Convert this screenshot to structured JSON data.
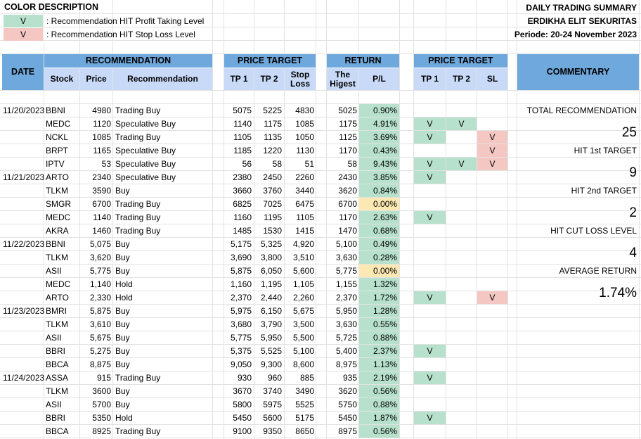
{
  "legend": {
    "title": "COLOR DESCRIPTION",
    "items": [
      {
        "symbol": "V",
        "text": ": Recommendation HIT Profit Taking Level",
        "color": "#b7e1cd"
      },
      {
        "symbol": "V",
        "text": ": Recommendation HIT Stop Loss Level",
        "color": "#f4c7c3"
      }
    ]
  },
  "report": {
    "title": "DAILY TRADING SUMMARY",
    "company": "ERDIKHA ELIT SEKURITAS",
    "period": "Periode:  20-24 November 2023"
  },
  "headers": {
    "date": "DATE",
    "recommendation": "RECOMMENDATION",
    "stock": "Stock",
    "price": "Price",
    "recommendation_col": "Recommendation",
    "price_target": "PRICE TARGET",
    "tp1": "TP 1",
    "tp2": "TP 2",
    "stop_loss": "Stop Loss",
    "return": "RETURN",
    "highest": "The Higest",
    "pl": "P/L",
    "hit_price_target": "PRICE TARGET",
    "hit_tp1": "TP 1",
    "hit_tp2": "TP 2",
    "hit_sl": "SL",
    "commentary": "COMMENTARY"
  },
  "colors": {
    "header_dark": "#6fa8dc",
    "header_light": "#c9daf8",
    "pl_positive": "#b7e1cd",
    "pl_zero": "#fce8b2",
    "hit_profit": "#b7e1cd",
    "hit_stop": "#f4c7c3"
  },
  "rows": [
    {
      "date": "11/20/2023",
      "stock": "BBNI",
      "price": "4980",
      "rec": "Trading Buy",
      "tp1": "5075",
      "tp2": "5225",
      "sl": "4830",
      "high": "5025",
      "pl": "0.90%",
      "pl_color": "green",
      "h1": "",
      "h2": "",
      "hs": ""
    },
    {
      "date": "",
      "stock": "MEDC",
      "price": "1120",
      "rec": "Speculative Buy",
      "tp1": "1140",
      "tp2": "1175",
      "sl": "1085",
      "high": "1175",
      "pl": "4.91%",
      "pl_color": "green",
      "h1": "V",
      "h2": "V",
      "hs": ""
    },
    {
      "date": "",
      "stock": "NCKL",
      "price": "1085",
      "rec": "Trading Buy",
      "tp1": "1105",
      "tp2": "1135",
      "sl": "1050",
      "high": "1125",
      "pl": "3.69%",
      "pl_color": "green",
      "h1": "V",
      "h2": "",
      "hs": "V"
    },
    {
      "date": "",
      "stock": "BRPT",
      "price": "1165",
      "rec": "Speculative Buy",
      "tp1": "1185",
      "tp2": "1220",
      "sl": "1130",
      "high": "1170",
      "pl": "0.43%",
      "pl_color": "green",
      "h1": "",
      "h2": "",
      "hs": "V"
    },
    {
      "date": "",
      "stock": "IPTV",
      "price": "53",
      "rec": "Speculative Buy",
      "tp1": "56",
      "tp2": "58",
      "sl": "51",
      "high": "58",
      "pl": "9.43%",
      "pl_color": "green",
      "h1": "V",
      "h2": "V",
      "hs": "V"
    },
    {
      "date": "11/21/2023",
      "stock": "ARTO",
      "price": "2340",
      "rec": "Speculative Buy",
      "tp1": "2380",
      "tp2": "2450",
      "sl": "2260",
      "high": "2430",
      "pl": "3.85%",
      "pl_color": "green",
      "h1": "V",
      "h2": "",
      "hs": ""
    },
    {
      "date": "",
      "stock": "TLKM",
      "price": "3590",
      "rec": "Buy",
      "tp1": "3660",
      "tp2": "3760",
      "sl": "3440",
      "high": "3620",
      "pl": "0.84%",
      "pl_color": "green",
      "h1": "",
      "h2": "",
      "hs": ""
    },
    {
      "date": "",
      "stock": "SMGR",
      "price": "6700",
      "rec": "Trading Buy",
      "tp1": "6825",
      "tp2": "7025",
      "sl": "6475",
      "high": "6700",
      "pl": "0.00%",
      "pl_color": "yellow",
      "h1": "",
      "h2": "",
      "hs": ""
    },
    {
      "date": "",
      "stock": "MEDC",
      "price": "1140",
      "rec": "Trading Buy",
      "tp1": "1160",
      "tp2": "1195",
      "sl": "1105",
      "high": "1170",
      "pl": "2.63%",
      "pl_color": "green",
      "h1": "V",
      "h2": "",
      "hs": ""
    },
    {
      "date": "",
      "stock": "AKRA",
      "price": "1460",
      "rec": "Trading Buy",
      "tp1": "1485",
      "tp2": "1530",
      "sl": "1415",
      "high": "1470",
      "pl": "0.68%",
      "pl_color": "green",
      "h1": "",
      "h2": "",
      "hs": ""
    },
    {
      "date": "11/22/2023",
      "stock": "BBNI",
      "price": "5,075",
      "rec": "Buy",
      "tp1": "5,175",
      "tp2": "5,325",
      "sl": "4,920",
      "high": "5,100",
      "pl": "0.49%",
      "pl_color": "green",
      "h1": "",
      "h2": "",
      "hs": ""
    },
    {
      "date": "",
      "stock": "TLKM",
      "price": "3,620",
      "rec": "Buy",
      "tp1": "3,690",
      "tp2": "3,800",
      "sl": "3,510",
      "high": "3,630",
      "pl": "0.28%",
      "pl_color": "green",
      "h1": "",
      "h2": "",
      "hs": ""
    },
    {
      "date": "",
      "stock": "ASII",
      "price": "5,775",
      "rec": "Buy",
      "tp1": "5,875",
      "tp2": "6,050",
      "sl": "5,600",
      "high": "5,775",
      "pl": "0.00%",
      "pl_color": "yellow",
      "h1": "",
      "h2": "",
      "hs": ""
    },
    {
      "date": "",
      "stock": "MEDC",
      "price": "1,140",
      "rec": "Hold",
      "tp1": "1,160",
      "tp2": "1,195",
      "sl": "1,105",
      "high": "1,155",
      "pl": "1.32%",
      "pl_color": "green",
      "h1": "",
      "h2": "",
      "hs": ""
    },
    {
      "date": "",
      "stock": "ARTO",
      "price": "2,330",
      "rec": "Hold",
      "tp1": "2,370",
      "tp2": "2,440",
      "sl": "2,260",
      "high": "2,370",
      "pl": "1.72%",
      "pl_color": "green",
      "h1": "V",
      "h2": "",
      "hs": "V"
    },
    {
      "date": "11/23/2023",
      "stock": "BMRI",
      "price": "5,875",
      "rec": "Buy",
      "tp1": "5,975",
      "tp2": "6,150",
      "sl": "5,675",
      "high": "5,950",
      "pl": "1.28%",
      "pl_color": "green",
      "h1": "",
      "h2": "",
      "hs": ""
    },
    {
      "date": "",
      "stock": "TLKM",
      "price": "3,610",
      "rec": "Buy",
      "tp1": "3,680",
      "tp2": "3,790",
      "sl": "3,500",
      "high": "3,630",
      "pl": "0.55%",
      "pl_color": "green",
      "h1": "",
      "h2": "",
      "hs": ""
    },
    {
      "date": "",
      "stock": "ASII",
      "price": "5,675",
      "rec": "Buy",
      "tp1": "5,775",
      "tp2": "5,950",
      "sl": "5,500",
      "high": "5,725",
      "pl": "0.88%",
      "pl_color": "green",
      "h1": "",
      "h2": "",
      "hs": ""
    },
    {
      "date": "",
      "stock": "BBRI",
      "price": "5,275",
      "rec": "Buy",
      "tp1": "5,375",
      "tp2": "5,525",
      "sl": "5,100",
      "high": "5,400",
      "pl": "2.37%",
      "pl_color": "green",
      "h1": "V",
      "h2": "",
      "hs": ""
    },
    {
      "date": "",
      "stock": "BBCA",
      "price": "8,875",
      "rec": "Buy",
      "tp1": "9,050",
      "tp2": "9,300",
      "sl": "8,600",
      "high": "8,975",
      "pl": "1.13%",
      "pl_color": "green",
      "h1": "",
      "h2": "",
      "hs": ""
    },
    {
      "date": "11/24/2023",
      "stock": "ASSA",
      "price": "915",
      "rec": "Trading Buy",
      "tp1": "930",
      "tp2": "960",
      "sl": "885",
      "high": "935",
      "pl": "2.19%",
      "pl_color": "green",
      "h1": "V",
      "h2": "",
      "hs": ""
    },
    {
      "date": "",
      "stock": "TLKM",
      "price": "3600",
      "rec": "Buy",
      "tp1": "3670",
      "tp2": "3740",
      "sl": "3490",
      "high": "3620",
      "pl": "0.56%",
      "pl_color": "green",
      "h1": "",
      "h2": "",
      "hs": ""
    },
    {
      "date": "",
      "stock": "ASII",
      "price": "5700",
      "rec": "Buy",
      "tp1": "5800",
      "tp2": "5975",
      "sl": "5525",
      "high": "5750",
      "pl": "0.88%",
      "pl_color": "green",
      "h1": "",
      "h2": "",
      "hs": ""
    },
    {
      "date": "",
      "stock": "BBRI",
      "price": "5350",
      "rec": "Hold",
      "tp1": "5450",
      "tp2": "5600",
      "sl": "5175",
      "high": "5450",
      "pl": "1.87%",
      "pl_color": "green",
      "h1": "V",
      "h2": "",
      "hs": ""
    },
    {
      "date": "",
      "stock": "BBCA",
      "price": "8925",
      "rec": "Trading Buy",
      "tp1": "9100",
      "tp2": "9350",
      "sl": "8650",
      "high": "8975",
      "pl": "0.56%",
      "pl_color": "green",
      "h1": "",
      "h2": "",
      "hs": ""
    }
  ],
  "commentary": {
    "total_label": "TOTAL RECOMMENDATION",
    "total_value": "25",
    "hit1_label": "HIT 1st TARGET",
    "hit1_value": "9",
    "hit2_label": "HIT 2nd TARGET",
    "hit2_value": "2",
    "cut_label": "HIT CUT LOSS LEVEL",
    "cut_value": "4",
    "avg_label": "AVERAGE RETURN",
    "avg_value": "1.74%"
  }
}
